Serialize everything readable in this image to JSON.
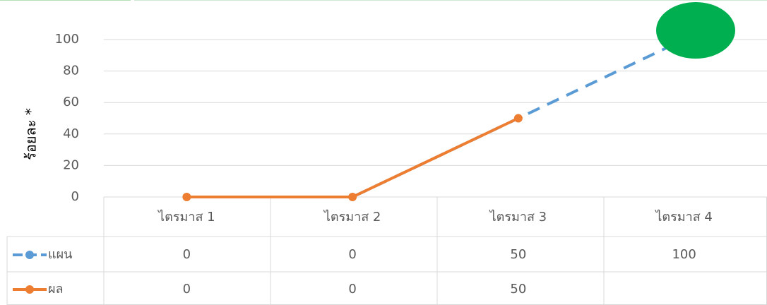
{
  "chart_data": {
    "type": "line",
    "y_label": "ร้อยละ *",
    "categories": [
      "ไตรมาส 1",
      "ไตรมาส 2",
      "ไตรมาส 3",
      "ไตรมาส 4"
    ],
    "series": [
      {
        "name": "แผน",
        "color": "#5b9bd5",
        "dashed": true,
        "values": [
          0,
          0,
          50,
          100
        ]
      },
      {
        "name": "ผล",
        "color": "#ed7d31",
        "dashed": false,
        "values": [
          0,
          0,
          50,
          null
        ]
      }
    ],
    "ylim": [
      0,
      100
    ],
    "yticks": [
      0,
      20,
      40,
      60,
      80,
      100
    ],
    "grid": true
  }
}
